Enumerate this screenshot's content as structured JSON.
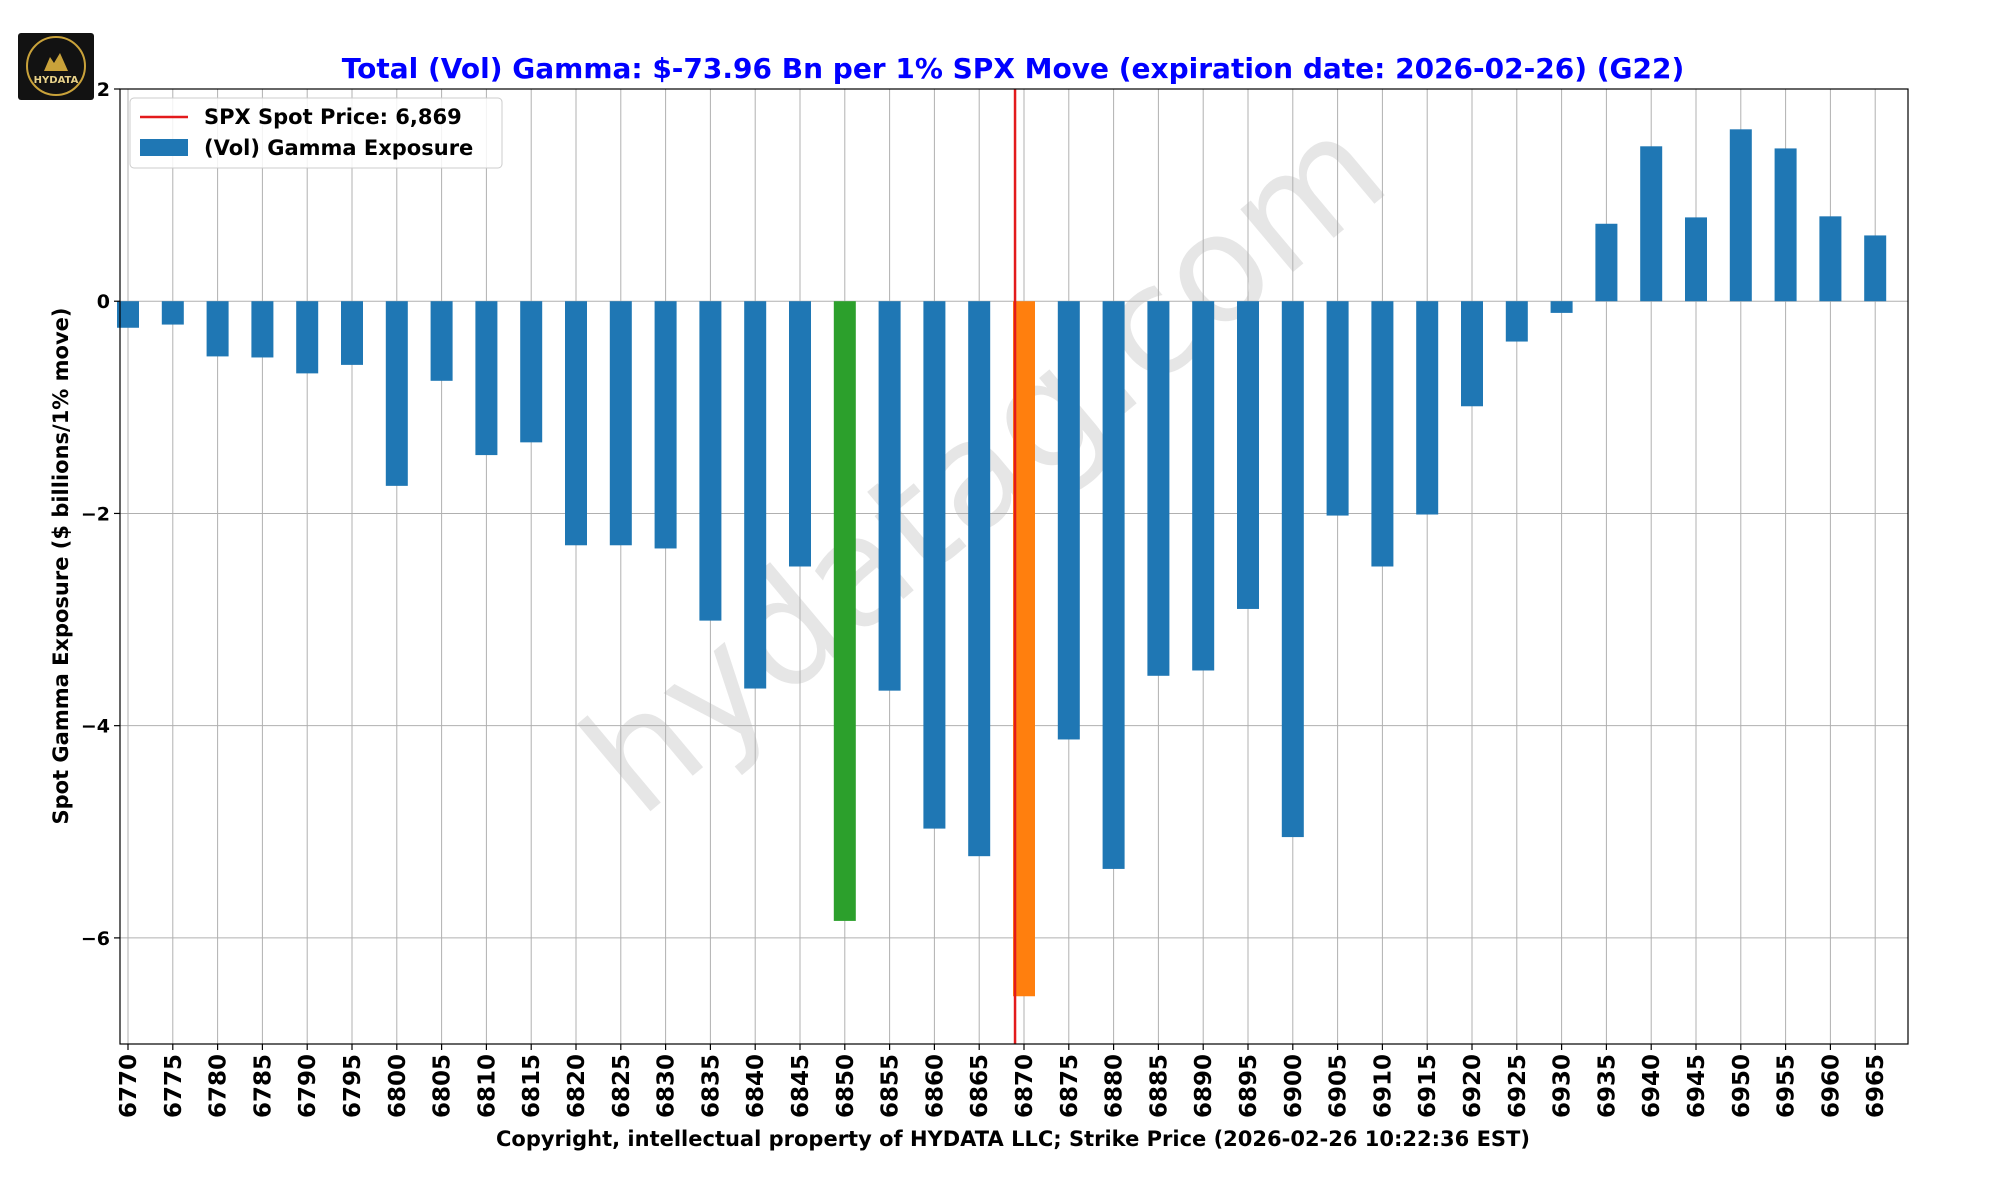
{
  "logo": {
    "text": "HYDATA"
  },
  "chart_data": {
    "type": "bar",
    "title": "Total (Vol) Gamma: $-73.96 Bn per 1% SPX Move (expiration date: 2026-02-26) (G22)",
    "xlabel": "Copyright, intellectual property of HYDATA LLC; Strike Price (2026-02-26 10:22:36 EST)",
    "ylabel": "Spot Gamma Exposure ($ billions/1% move)",
    "categories": [
      "6770",
      "6775",
      "6780",
      "6785",
      "6790",
      "6795",
      "6800",
      "6805",
      "6810",
      "6815",
      "6820",
      "6825",
      "6830",
      "6835",
      "6840",
      "6845",
      "6850",
      "6855",
      "6860",
      "6865",
      "6870",
      "6875",
      "6880",
      "6885",
      "6890",
      "6895",
      "6900",
      "6905",
      "6910",
      "6915",
      "6920",
      "6925",
      "6930",
      "6935",
      "6940",
      "6945",
      "6950",
      "6955",
      "6960",
      "6965"
    ],
    "values": [
      -0.25,
      -0.22,
      -0.52,
      -0.53,
      -0.68,
      -0.6,
      -1.74,
      -0.75,
      -1.45,
      -1.33,
      -2.3,
      -2.3,
      -2.33,
      -3.01,
      -3.65,
      -2.5,
      -5.84,
      -3.67,
      -4.97,
      -5.23,
      -6.55,
      -4.13,
      -5.35,
      -3.53,
      -3.48,
      -2.9,
      -5.05,
      -2.02,
      -2.5,
      -2.01,
      -0.99,
      -0.38,
      -0.11,
      0.73,
      1.46,
      0.79,
      1.62,
      1.44,
      0.8,
      0.62
    ],
    "yticks": [
      2,
      0,
      -2,
      -4,
      -6
    ],
    "ytick_labels": [
      "2",
      "0",
      "−2",
      "−4",
      "−6"
    ],
    "ylim": [
      -7.0,
      2.0
    ],
    "grid": true,
    "colors": {
      "default": "#1f77b4",
      "highlight_green": "#2ca02c",
      "highlight_orange": "#ff7f0e",
      "spot_line": "#e31a1c",
      "title": "#0000ff"
    },
    "highlights": {
      "6850": "highlight_green",
      "6870": "highlight_orange"
    },
    "spot_price": {
      "label": "SPX Spot Price: 6,869",
      "value": 6869
    },
    "series_label": "(Vol) Gamma Exposure",
    "legend_location": "top-left",
    "watermark": "hydatag.com"
  }
}
